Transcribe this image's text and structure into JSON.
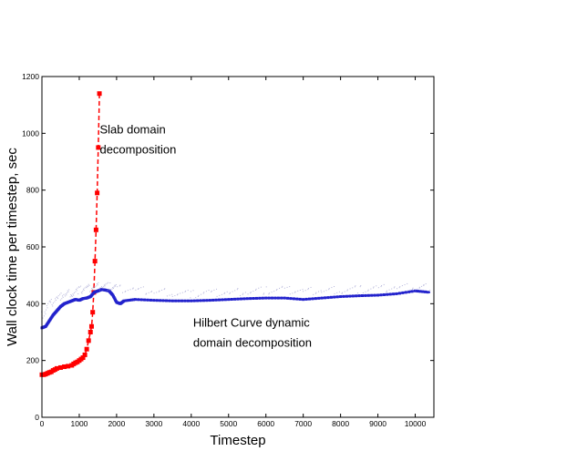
{
  "chart_data": {
    "type": "line",
    "title": "",
    "xlabel": "Timestep",
    "ylabel": "Wall clock time per timestep, sec",
    "xlim": [
      0,
      10500
    ],
    "ylim": [
      0,
      1200
    ],
    "xticks": [
      0,
      1000,
      2000,
      3000,
      4000,
      5000,
      6000,
      7000,
      8000,
      9000,
      10000
    ],
    "yticks": [
      0,
      200,
      400,
      600,
      800,
      1000,
      1200
    ],
    "grid": false,
    "legend": "none",
    "annotations": [
      {
        "lines": [
          "Slab domain",
          "decomposition"
        ],
        "x": 1550,
        "y": 1000
      },
      {
        "lines": [
          "Hilbert Curve dynamic",
          "domain decomposition"
        ],
        "x": 4050,
        "y": 320
      }
    ],
    "series": [
      {
        "color": "#ff0000",
        "style": "dashed-markers",
        "x": [
          0,
          50,
          100,
          150,
          200,
          250,
          300,
          350,
          400,
          500,
          600,
          700,
          800,
          850,
          900,
          950,
          1000,
          1050,
          1100,
          1150,
          1200,
          1250,
          1300,
          1330,
          1360,
          1390,
          1420,
          1450,
          1480,
          1510,
          1540
        ],
        "y": [
          150,
          150,
          152,
          155,
          158,
          160,
          165,
          168,
          172,
          175,
          178,
          180,
          183,
          188,
          192,
          195,
          200,
          205,
          210,
          220,
          240,
          270,
          300,
          320,
          370,
          440,
          550,
          660,
          790,
          950,
          1140
        ]
      },
      {
        "color": "#2222cc",
        "style": "dense-markers",
        "x": [
          0,
          100,
          200,
          300,
          400,
          500,
          600,
          700,
          800,
          900,
          1000,
          1100,
          1200,
          1300,
          1400,
          1500,
          1600,
          1700,
          1800,
          1900,
          2000,
          2100,
          2200,
          2500,
          3000,
          3500,
          4000,
          4500,
          5000,
          5500,
          6000,
          6500,
          7000,
          7500,
          8000,
          8500,
          9000,
          9500,
          10000,
          10400
        ],
        "y": [
          315,
          320,
          340,
          360,
          375,
          390,
          400,
          405,
          410,
          415,
          412,
          418,
          420,
          425,
          440,
          445,
          450,
          448,
          445,
          430,
          405,
          400,
          410,
          415,
          412,
          410,
          410,
          412,
          415,
          418,
          420,
          420,
          415,
          420,
          425,
          428,
          430,
          435,
          445,
          440
        ]
      },
      {
        "color": "#9999cc",
        "style": "faint-dots",
        "x": [
          0,
          200,
          400,
          600,
          800,
          1000,
          1200,
          1400,
          1600,
          1800,
          2000,
          2500,
          3000,
          3500,
          4000,
          4500,
          5000,
          5500,
          6000,
          6500,
          7000,
          7500,
          8000,
          8500,
          9000,
          9500,
          10000,
          10400
        ],
        "y": [
          360,
          400,
          420,
          435,
          440,
          450,
          455,
          460,
          465,
          462,
          455,
          450,
          445,
          440,
          435,
          440,
          440,
          445,
          448,
          450,
          445,
          448,
          450,
          452,
          455,
          458,
          460,
          458
        ]
      }
    ]
  }
}
